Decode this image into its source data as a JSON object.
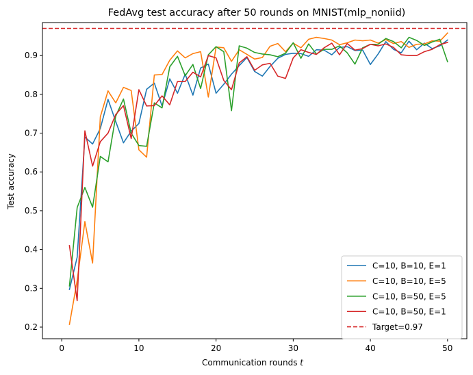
{
  "chart_data": {
    "type": "line",
    "title": "FedAvg test accuracy after 50 rounds on MNIST(mlp_noniid)",
    "xlabel": "Communication rounds ",
    "xlabel_var": "t",
    "ylabel": "Test accuracy",
    "xlim": [
      -2.5,
      52.5
    ],
    "ylim": [
      0.17,
      0.985
    ],
    "xticks": [
      0,
      10,
      20,
      30,
      40,
      50
    ],
    "yticks": [
      0.2,
      0.3,
      0.4,
      0.5,
      0.6,
      0.7,
      0.8,
      0.9
    ],
    "grid": false,
    "legend_position": "lower right",
    "x": [
      1,
      2,
      3,
      4,
      5,
      6,
      7,
      8,
      9,
      10,
      11,
      12,
      13,
      14,
      15,
      16,
      17,
      18,
      19,
      20,
      21,
      22,
      23,
      24,
      25,
      26,
      27,
      28,
      29,
      30,
      31,
      32,
      33,
      34,
      35,
      36,
      37,
      38,
      39,
      40,
      41,
      42,
      43,
      44,
      45,
      46,
      47,
      48,
      49,
      50
    ],
    "series": [
      {
        "name": "C=10, B=10, E=1",
        "color": "#1f77b4",
        "values": [
          0.297,
          0.38,
          0.69,
          0.672,
          0.712,
          0.787,
          0.73,
          0.675,
          0.705,
          0.725,
          0.813,
          0.829,
          0.77,
          0.84,
          0.803,
          0.852,
          0.798,
          0.868,
          0.878,
          0.803,
          0.826,
          0.852,
          0.874,
          0.895,
          0.859,
          0.847,
          0.872,
          0.893,
          0.903,
          0.906,
          0.905,
          0.898,
          0.915,
          0.914,
          0.902,
          0.921,
          0.923,
          0.913,
          0.914,
          0.877,
          0.904,
          0.936,
          0.916,
          0.907,
          0.937,
          0.915,
          0.932,
          0.918,
          0.925,
          0.94
        ]
      },
      {
        "name": "C=10, B=10, E=5",
        "color": "#ff7f0e",
        "values": [
          0.207,
          0.32,
          0.472,
          0.365,
          0.742,
          0.809,
          0.778,
          0.818,
          0.81,
          0.657,
          0.638,
          0.85,
          0.851,
          0.888,
          0.912,
          0.894,
          0.905,
          0.91,
          0.793,
          0.922,
          0.92,
          0.885,
          0.915,
          0.903,
          0.891,
          0.895,
          0.924,
          0.931,
          0.91,
          0.932,
          0.92,
          0.942,
          0.947,
          0.944,
          0.94,
          0.928,
          0.933,
          0.94,
          0.938,
          0.94,
          0.932,
          0.941,
          0.931,
          0.936,
          0.921,
          0.929,
          0.93,
          0.938,
          0.937,
          0.958
        ]
      },
      {
        "name": "C=10, B=50, E=5",
        "color": "#2ca02c",
        "values": [
          0.306,
          0.508,
          0.56,
          0.509,
          0.64,
          0.626,
          0.744,
          0.788,
          0.7,
          0.668,
          0.666,
          0.778,
          0.765,
          0.871,
          0.898,
          0.848,
          0.877,
          0.815,
          0.902,
          0.923,
          0.91,
          0.758,
          0.925,
          0.919,
          0.908,
          0.904,
          0.902,
          0.897,
          0.906,
          0.933,
          0.893,
          0.93,
          0.904,
          0.916,
          0.916,
          0.925,
          0.907,
          0.878,
          0.92,
          0.929,
          0.929,
          0.944,
          0.936,
          0.92,
          0.947,
          0.939,
          0.926,
          0.935,
          0.942,
          0.884
        ]
      },
      {
        "name": "C=10, B=50, E=1",
        "color": "#d62728",
        "values": [
          0.41,
          0.268,
          0.706,
          0.615,
          0.678,
          0.7,
          0.748,
          0.771,
          0.686,
          0.812,
          0.77,
          0.771,
          0.796,
          0.773,
          0.833,
          0.833,
          0.857,
          0.845,
          0.9,
          0.894,
          0.836,
          0.812,
          0.881,
          0.897,
          0.862,
          0.876,
          0.88,
          0.847,
          0.841,
          0.894,
          0.915,
          0.908,
          0.903,
          0.92,
          0.932,
          0.902,
          0.931,
          0.914,
          0.918,
          0.929,
          0.925,
          0.93,
          0.921,
          0.902,
          0.9,
          0.9,
          0.91,
          0.916,
          0.928,
          0.934
        ]
      }
    ],
    "reference_line": {
      "name": "Target=0.97",
      "value": 0.97,
      "color": "#d62728",
      "style": "dashed"
    }
  }
}
